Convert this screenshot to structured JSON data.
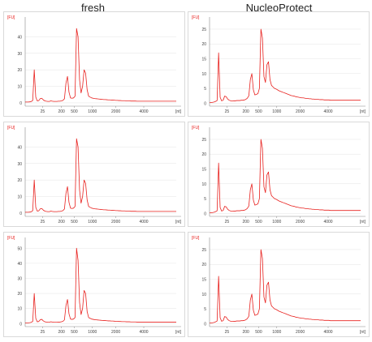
{
  "columns": {
    "left_title": "fresh",
    "right_title": "NucleoProtect"
  },
  "colors": {
    "trace": "#e8211e",
    "axis": "#888888",
    "grid": "#dddddd",
    "text": "#444444"
  },
  "chart_data": [
    {
      "type": "line",
      "column": "fresh",
      "row": 1,
      "ylabel": "[FU]",
      "xlabel": "[nt]",
      "yticks": [
        "0",
        "10",
        "20",
        "30",
        "40"
      ],
      "ylim": [
        -2,
        50
      ],
      "xticks": [
        "25",
        "200",
        "500",
        "1000",
        "2000",
        "4000"
      ],
      "x": [
        0,
        0.1,
        0.2,
        0.3,
        0.4,
        0.5,
        0.6,
        0.7,
        0.8,
        0.9,
        1,
        1.1,
        1.2,
        1.3,
        1.4,
        1.5,
        1.6,
        1.7,
        1.8,
        1.9,
        2,
        2.1,
        2.2,
        2.3,
        2.4,
        2.5,
        2.6,
        2.7,
        2.8,
        2.9,
        3,
        3.1,
        3.2,
        3.3,
        3.4,
        3.5,
        3.6,
        3.7,
        3.8,
        3.9,
        4,
        4.1,
        4.2,
        4.3,
        4.4,
        4.5,
        4.6,
        4.7,
        4.8,
        4.9,
        5,
        5.1,
        5.2,
        5.3,
        5.4,
        5.5,
        5.6,
        5.7,
        5.8,
        5.9,
        6,
        6.1,
        6.2,
        6.3,
        6.4,
        6.5,
        6.6,
        6.7,
        6.8,
        6.9,
        7,
        7.1,
        7.2,
        7.3,
        7.4,
        7.5,
        7.6,
        7.7,
        7.8,
        7.9,
        8,
        8.1,
        8.2,
        8.3,
        8.4,
        8.5,
        8.6,
        8.7,
        8.8,
        8.9,
        9,
        9.1,
        9.2,
        9.3,
        9.4,
        9.5,
        9.6,
        9.7,
        9.8,
        9.9,
        10
      ],
      "y": [
        0.5,
        0.5,
        0.5,
        0.6,
        0.8,
        1.5,
        20,
        3.5,
        1.2,
        1.4,
        2.6,
        2.8,
        1.8,
        1.2,
        1,
        0.9,
        0.9,
        1.2,
        1,
        0.9,
        0.9,
        0.9,
        1,
        1,
        1.2,
        1.5,
        2.5,
        12,
        16,
        6.5,
        3,
        2.8,
        3,
        4,
        45,
        40,
        14,
        6,
        10,
        20,
        18,
        8,
        4,
        3.5,
        3,
        2.8,
        2.6,
        2.5,
        2.4,
        2.3,
        2.2,
        2.1,
        2,
        2,
        1.9,
        1.8,
        1.8,
        1.7,
        1.7,
        1.6,
        1.5,
        1.5,
        1.4,
        1.4,
        1.3,
        1.3,
        1.3,
        1.2,
        1.2,
        1.2,
        1.1,
        1.1,
        1.1,
        1.1,
        1,
        1,
        1,
        1,
        1,
        1,
        1,
        1,
        1,
        1,
        1,
        1,
        1,
        1,
        1,
        1,
        1,
        1,
        1,
        1,
        1,
        1,
        1,
        1,
        1,
        1,
        1
      ]
    },
    {
      "type": "line",
      "column": "NucleoProtect",
      "row": 1,
      "ylabel": "[FU]",
      "xlabel": "[nt]",
      "yticks": [
        "0",
        "5",
        "10",
        "15",
        "20",
        "25"
      ],
      "ylim": [
        -1,
        28
      ],
      "xticks": [
        "25",
        "200",
        "500",
        "1000",
        "2000",
        "4000"
      ],
      "x": [
        0,
        0.1,
        0.2,
        0.3,
        0.4,
        0.5,
        0.6,
        0.7,
        0.8,
        0.9,
        1,
        1.1,
        1.2,
        1.3,
        1.4,
        1.5,
        1.6,
        1.7,
        1.8,
        1.9,
        2,
        2.1,
        2.2,
        2.3,
        2.4,
        2.5,
        2.6,
        2.7,
        2.8,
        2.9,
        3,
        3.1,
        3.2,
        3.3,
        3.4,
        3.5,
        3.6,
        3.7,
        3.8,
        3.9,
        4,
        4.1,
        4.2,
        4.3,
        4.4,
        4.5,
        4.6,
        4.7,
        4.8,
        4.9,
        5,
        5.1,
        5.2,
        5.3,
        5.4,
        5.5,
        5.6,
        5.7,
        5.8,
        5.9,
        6,
        6.1,
        6.2,
        6.3,
        6.4,
        6.5,
        6.6,
        6.7,
        6.8,
        6.9,
        7,
        7.1,
        7.2,
        7.3,
        7.4,
        7.5,
        7.6,
        7.7,
        7.8,
        7.9,
        8,
        8.1,
        8.2,
        8.3,
        8.4,
        8.5,
        8.6,
        8.7,
        8.8,
        8.9,
        9,
        9.1,
        9.2,
        9.3,
        9.4,
        9.5,
        9.6,
        9.7,
        9.8,
        9.9,
        10
      ],
      "y": [
        0.2,
        0.2,
        0.3,
        0.4,
        0.6,
        0.9,
        17,
        2,
        0.8,
        1,
        2.4,
        2.2,
        1.4,
        1,
        0.8,
        0.7,
        0.8,
        0.8,
        0.9,
        0.9,
        0.9,
        1,
        1,
        1.1,
        1.3,
        1.7,
        2.5,
        8,
        10,
        4.5,
        2.8,
        3,
        3.2,
        5,
        25,
        22,
        9,
        7,
        13,
        14,
        8,
        6,
        5.5,
        5,
        4.8,
        4.5,
        4.2,
        4,
        3.8,
        3.6,
        3.4,
        3.2,
        3,
        2.8,
        2.6,
        2.5,
        2.4,
        2.2,
        2.1,
        2,
        1.9,
        1.8,
        1.8,
        1.7,
        1.6,
        1.6,
        1.5,
        1.5,
        1.4,
        1.4,
        1.3,
        1.3,
        1.3,
        1.2,
        1.2,
        1.2,
        1.1,
        1.1,
        1.1,
        1.1,
        1,
        1,
        1,
        1,
        1,
        1,
        1,
        1,
        1,
        1,
        1,
        1,
        1,
        1,
        1,
        1,
        1,
        1,
        1,
        1,
        1
      ]
    },
    {
      "type": "line",
      "column": "fresh",
      "row": 2,
      "ylabel": "[FU]",
      "xlabel": "[nt]",
      "yticks": [
        "0",
        "10",
        "20",
        "30",
        "40"
      ],
      "ylim": [
        -2,
        50
      ],
      "xticks": [
        "25",
        "200",
        "500",
        "1000",
        "2000",
        "4000"
      ],
      "x": [
        0,
        0.1,
        0.2,
        0.3,
        0.4,
        0.5,
        0.6,
        0.7,
        0.8,
        0.9,
        1,
        1.1,
        1.2,
        1.3,
        1.4,
        1.5,
        1.6,
        1.7,
        1.8,
        1.9,
        2,
        2.1,
        2.2,
        2.3,
        2.4,
        2.5,
        2.6,
        2.7,
        2.8,
        2.9,
        3,
        3.1,
        3.2,
        3.3,
        3.4,
        3.5,
        3.6,
        3.7,
        3.8,
        3.9,
        4,
        4.1,
        4.2,
        4.3,
        4.4,
        4.5,
        4.6,
        4.7,
        4.8,
        4.9,
        5,
        5.1,
        5.2,
        5.3,
        5.4,
        5.5,
        5.6,
        5.7,
        5.8,
        5.9,
        6,
        6.1,
        6.2,
        6.3,
        6.4,
        6.5,
        6.6,
        6.7,
        6.8,
        6.9,
        7,
        7.1,
        7.2,
        7.3,
        7.4,
        7.5,
        7.6,
        7.7,
        7.8,
        7.9,
        8,
        8.1,
        8.2,
        8.3,
        8.4,
        8.5,
        8.6,
        8.7,
        8.8,
        8.9,
        9,
        9.1,
        9.2,
        9.3,
        9.4,
        9.5,
        9.6,
        9.7,
        9.8,
        9.9,
        10
      ],
      "y": [
        0.5,
        0.5,
        0.5,
        0.6,
        0.8,
        1.5,
        20,
        3.5,
        1.2,
        1.4,
        2.6,
        2.8,
        1.8,
        1.2,
        1,
        0.9,
        0.9,
        1.2,
        1,
        0.9,
        0.9,
        0.9,
        1,
        1,
        1.2,
        1.5,
        2.5,
        12,
        16,
        6.5,
        3,
        2.8,
        3,
        4,
        45,
        40,
        14,
        6,
        10,
        20,
        18,
        8,
        4,
        3.5,
        3,
        2.8,
        2.6,
        2.5,
        2.4,
        2.3,
        2.2,
        2.1,
        2,
        2,
        1.9,
        1.8,
        1.8,
        1.7,
        1.7,
        1.6,
        1.5,
        1.5,
        1.4,
        1.4,
        1.3,
        1.3,
        1.3,
        1.2,
        1.2,
        1.2,
        1.1,
        1.1,
        1.1,
        1.1,
        1,
        1,
        1,
        1,
        1,
        1,
        1,
        1,
        1,
        1,
        1,
        1,
        1,
        1,
        1,
        1,
        1,
        1,
        1,
        1,
        1,
        1,
        1,
        1,
        1,
        1,
        1
      ]
    },
    {
      "type": "line",
      "column": "NucleoProtect",
      "row": 2,
      "ylabel": "[FU]",
      "xlabel": "[nt]",
      "yticks": [
        "0",
        "5",
        "10",
        "15",
        "20",
        "25"
      ],
      "ylim": [
        -1,
        28
      ],
      "xticks": [
        "25",
        "200",
        "500",
        "1000",
        "2000",
        "4000"
      ],
      "x": [
        0,
        0.1,
        0.2,
        0.3,
        0.4,
        0.5,
        0.6,
        0.7,
        0.8,
        0.9,
        1,
        1.1,
        1.2,
        1.3,
        1.4,
        1.5,
        1.6,
        1.7,
        1.8,
        1.9,
        2,
        2.1,
        2.2,
        2.3,
        2.4,
        2.5,
        2.6,
        2.7,
        2.8,
        2.9,
        3,
        3.1,
        3.2,
        3.3,
        3.4,
        3.5,
        3.6,
        3.7,
        3.8,
        3.9,
        4,
        4.1,
        4.2,
        4.3,
        4.4,
        4.5,
        4.6,
        4.7,
        4.8,
        4.9,
        5,
        5.1,
        5.2,
        5.3,
        5.4,
        5.5,
        5.6,
        5.7,
        5.8,
        5.9,
        6,
        6.1,
        6.2,
        6.3,
        6.4,
        6.5,
        6.6,
        6.7,
        6.8,
        6.9,
        7,
        7.1,
        7.2,
        7.3,
        7.4,
        7.5,
        7.6,
        7.7,
        7.8,
        7.9,
        8,
        8.1,
        8.2,
        8.3,
        8.4,
        8.5,
        8.6,
        8.7,
        8.8,
        8.9,
        9,
        9.1,
        9.2,
        9.3,
        9.4,
        9.5,
        9.6,
        9.7,
        9.8,
        9.9,
        10
      ],
      "y": [
        0.2,
        0.2,
        0.3,
        0.4,
        0.6,
        0.9,
        17,
        2,
        0.8,
        1,
        2.4,
        2.2,
        1.4,
        1,
        0.8,
        0.7,
        0.8,
        0.8,
        0.9,
        0.9,
        0.9,
        1,
        1,
        1.1,
        1.3,
        1.7,
        2.5,
        8,
        10,
        4.5,
        2.8,
        3,
        3.2,
        5,
        25,
        22,
        9,
        7,
        13,
        14,
        8,
        6,
        5.5,
        5,
        4.8,
        4.5,
        4.2,
        4,
        3.8,
        3.6,
        3.4,
        3.2,
        3,
        2.8,
        2.6,
        2.5,
        2.4,
        2.2,
        2.1,
        2,
        1.9,
        1.8,
        1.8,
        1.7,
        1.6,
        1.6,
        1.5,
        1.5,
        1.4,
        1.4,
        1.3,
        1.3,
        1.3,
        1.2,
        1.2,
        1.2,
        1.1,
        1.1,
        1.1,
        1.1,
        1,
        1,
        1,
        1,
        1,
        1,
        1,
        1,
        1,
        1,
        1,
        1,
        1,
        1,
        1,
        1,
        1,
        1,
        1,
        1,
        1
      ]
    },
    {
      "type": "line",
      "column": "fresh",
      "row": 3,
      "ylabel": "[FU]",
      "xlabel": "[nt]",
      "yticks": [
        "0",
        "10",
        "20",
        "30",
        "40",
        "50"
      ],
      "ylim": [
        -2,
        55
      ],
      "xticks": [
        "25",
        "200",
        "500",
        "1000",
        "2000",
        "4000"
      ],
      "x": [
        0,
        0.1,
        0.2,
        0.3,
        0.4,
        0.5,
        0.6,
        0.7,
        0.8,
        0.9,
        1,
        1.1,
        1.2,
        1.3,
        1.4,
        1.5,
        1.6,
        1.7,
        1.8,
        1.9,
        2,
        2.1,
        2.2,
        2.3,
        2.4,
        2.5,
        2.6,
        2.7,
        2.8,
        2.9,
        3,
        3.1,
        3.2,
        3.3,
        3.4,
        3.5,
        3.6,
        3.7,
        3.8,
        3.9,
        4,
        4.1,
        4.2,
        4.3,
        4.4,
        4.5,
        4.6,
        4.7,
        4.8,
        4.9,
        5,
        5.1,
        5.2,
        5.3,
        5.4,
        5.5,
        5.6,
        5.7,
        5.8,
        5.9,
        6,
        6.1,
        6.2,
        6.3,
        6.4,
        6.5,
        6.6,
        6.7,
        6.8,
        6.9,
        7,
        7.1,
        7.2,
        7.3,
        7.4,
        7.5,
        7.6,
        7.7,
        7.8,
        7.9,
        8,
        8.1,
        8.2,
        8.3,
        8.4,
        8.5,
        8.6,
        8.7,
        8.8,
        8.9,
        9,
        9.1,
        9.2,
        9.3,
        9.4,
        9.5,
        9.6,
        9.7,
        9.8,
        9.9,
        10
      ],
      "y": [
        0.5,
        0.5,
        0.5,
        0.6,
        0.8,
        1.5,
        20,
        3.5,
        1.2,
        1.4,
        2.6,
        2.8,
        1.8,
        1.2,
        1,
        0.9,
        0.9,
        1.2,
        1,
        0.9,
        0.9,
        0.9,
        1,
        1,
        1.2,
        1.5,
        2.5,
        12,
        16,
        6.5,
        3,
        2.8,
        3,
        4,
        50,
        42,
        14,
        6,
        10,
        22,
        20,
        8,
        4,
        3.5,
        3,
        2.8,
        2.6,
        2.5,
        2.4,
        2.3,
        2.2,
        2.1,
        2,
        2,
        1.9,
        1.8,
        1.8,
        1.7,
        1.7,
        1.6,
        1.5,
        1.5,
        1.4,
        1.4,
        1.3,
        1.3,
        1.3,
        1.2,
        1.2,
        1.2,
        1.1,
        1.1,
        1.1,
        1.1,
        1,
        1,
        1,
        1,
        1,
        1,
        1,
        1,
        1,
        1,
        1,
        1,
        1,
        1,
        1,
        1,
        1,
        1,
        1,
        1,
        1,
        1,
        1,
        1,
        1,
        1,
        1
      ]
    },
    {
      "type": "line",
      "column": "NucleoProtect",
      "row": 3,
      "ylabel": "[FU]",
      "xlabel": "[nt]",
      "yticks": [
        "0",
        "5",
        "10",
        "15",
        "20",
        "25"
      ],
      "ylim": [
        -1,
        28
      ],
      "xticks": [
        "25",
        "200",
        "500",
        "1000",
        "2000",
        "4000"
      ],
      "x": [
        0,
        0.1,
        0.2,
        0.3,
        0.4,
        0.5,
        0.6,
        0.7,
        0.8,
        0.9,
        1,
        1.1,
        1.2,
        1.3,
        1.4,
        1.5,
        1.6,
        1.7,
        1.8,
        1.9,
        2,
        2.1,
        2.2,
        2.3,
        2.4,
        2.5,
        2.6,
        2.7,
        2.8,
        2.9,
        3,
        3.1,
        3.2,
        3.3,
        3.4,
        3.5,
        3.6,
        3.7,
        3.8,
        3.9,
        4,
        4.1,
        4.2,
        4.3,
        4.4,
        4.5,
        4.6,
        4.7,
        4.8,
        4.9,
        5,
        5.1,
        5.2,
        5.3,
        5.4,
        5.5,
        5.6,
        5.7,
        5.8,
        5.9,
        6,
        6.1,
        6.2,
        6.3,
        6.4,
        6.5,
        6.6,
        6.7,
        6.8,
        6.9,
        7,
        7.1,
        7.2,
        7.3,
        7.4,
        7.5,
        7.6,
        7.7,
        7.8,
        7.9,
        8,
        8.1,
        8.2,
        8.3,
        8.4,
        8.5,
        8.6,
        8.7,
        8.8,
        8.9,
        9,
        9.1,
        9.2,
        9.3,
        9.4,
        9.5,
        9.6,
        9.7,
        9.8,
        9.9,
        10
      ],
      "y": [
        0.2,
        0.2,
        0.3,
        0.4,
        0.6,
        0.9,
        16,
        2,
        0.8,
        1,
        2.4,
        2.2,
        1.4,
        1,
        0.8,
        0.7,
        0.8,
        0.8,
        0.9,
        0.9,
        0.9,
        1,
        1,
        1.1,
        1.3,
        1.7,
        2.5,
        8,
        10,
        4.5,
        2.8,
        3,
        3.2,
        5,
        25,
        22,
        9,
        7,
        13,
        14,
        8,
        6,
        5.5,
        5,
        4.8,
        4.5,
        4.2,
        4,
        3.8,
        3.6,
        3.4,
        3.2,
        3,
        2.8,
        2.6,
        2.5,
        2.4,
        2.2,
        2.1,
        2,
        1.9,
        1.8,
        1.8,
        1.7,
        1.6,
        1.6,
        1.5,
        1.5,
        1.4,
        1.4,
        1.3,
        1.3,
        1.3,
        1.2,
        1.2,
        1.2,
        1.1,
        1.1,
        1.1,
        1.1,
        1,
        1,
        1,
        1,
        1,
        1,
        1,
        1,
        1,
        1,
        1,
        1,
        1,
        1,
        1,
        1,
        1,
        1,
        1,
        1,
        1
      ]
    }
  ]
}
